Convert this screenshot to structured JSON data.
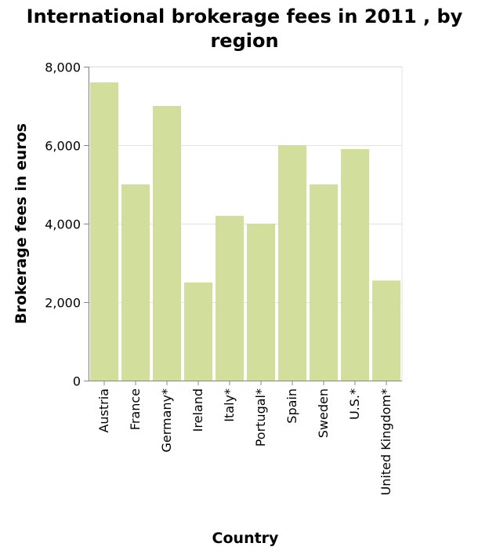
{
  "chart_data": {
    "type": "bar",
    "title_lines": [
      "International brokerage fees in 2011 , by",
      "region"
    ],
    "xlabel": "Country",
    "ylabel": "Brokerage fees in euros",
    "categories": [
      "Austria",
      "France",
      "Germany*",
      "Ireland",
      "Italy*",
      "Portugal*",
      "Spain",
      "Sweden",
      "U.S.*",
      "United Kingdom*"
    ],
    "values": [
      7600,
      5000,
      7000,
      2500,
      4200,
      4000,
      6000,
      5000,
      5900,
      2550
    ],
    "ylim": [
      0,
      8000
    ],
    "yticks": [
      0,
      2000,
      4000,
      6000,
      8000
    ],
    "ytick_labels": [
      "0",
      "2,000",
      "4,000",
      "6,000",
      "8,000"
    ],
    "grid": true,
    "legend": "none",
    "colors": {
      "bar": "#d2de9b",
      "grid": "#e3e3e3",
      "axis": "#888888"
    }
  }
}
